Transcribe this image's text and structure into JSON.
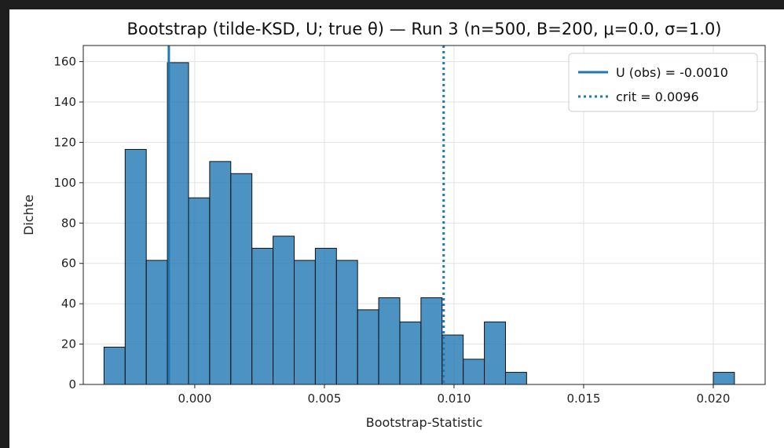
{
  "chart_data": {
    "type": "bar",
    "title": "Bootstrap (tilde-KSD, U; true θ) — Run 3  (n=500, B=200, μ=0.0, σ=1.0)",
    "xlabel": "Bootstrap-Statistic",
    "ylabel": "Dichte",
    "xlim": [
      -0.0043,
      0.022
    ],
    "ylim": [
      0,
      168
    ],
    "xticks": [
      {
        "value": 0.0,
        "label": "0.000"
      },
      {
        "value": 0.005,
        "label": "0.005"
      },
      {
        "value": 0.01,
        "label": "0.010"
      },
      {
        "value": 0.015,
        "label": "0.015"
      },
      {
        "value": 0.02,
        "label": "0.020"
      }
    ],
    "yticks": [
      0,
      20,
      40,
      60,
      80,
      100,
      120,
      140,
      160
    ],
    "grid": true,
    "bar_color": "#1f77b4",
    "bin_width": 0.000815,
    "bins": [
      {
        "x0": -0.0035,
        "value": 18.5
      },
      {
        "x0": -0.002685,
        "value": 116.5
      },
      {
        "x0": -0.00187,
        "value": 61.5
      },
      {
        "x0": -0.001055,
        "value": 159.5
      },
      {
        "x0": -0.00024,
        "value": 92.5
      },
      {
        "x0": 0.000575,
        "value": 110.5
      },
      {
        "x0": 0.00139,
        "value": 104.5
      },
      {
        "x0": 0.002205,
        "value": 67.5
      },
      {
        "x0": 0.00302,
        "value": 73.5
      },
      {
        "x0": 0.003835,
        "value": 61.5
      },
      {
        "x0": 0.00465,
        "value": 67.5
      },
      {
        "x0": 0.005465,
        "value": 61.5
      },
      {
        "x0": 0.00628,
        "value": 37
      },
      {
        "x0": 0.007095,
        "value": 43
      },
      {
        "x0": 0.00791,
        "value": 31
      },
      {
        "x0": 0.008725,
        "value": 43
      },
      {
        "x0": 0.00954,
        "value": 24.5
      },
      {
        "x0": 0.010355,
        "value": 12.5
      },
      {
        "x0": 0.01117,
        "value": 31
      },
      {
        "x0": 0.011985,
        "value": 6
      },
      {
        "x0": 0.02,
        "value": 6
      }
    ],
    "lines": [
      {
        "label": "U (obs) = -0.0010",
        "x": -0.001,
        "style": "solid",
        "color": "#1f77b4"
      },
      {
        "label": "crit = 0.0096",
        "x": 0.0096,
        "style": "dotted",
        "color": "#1f77b4"
      }
    ],
    "legend_position": "top-right"
  }
}
